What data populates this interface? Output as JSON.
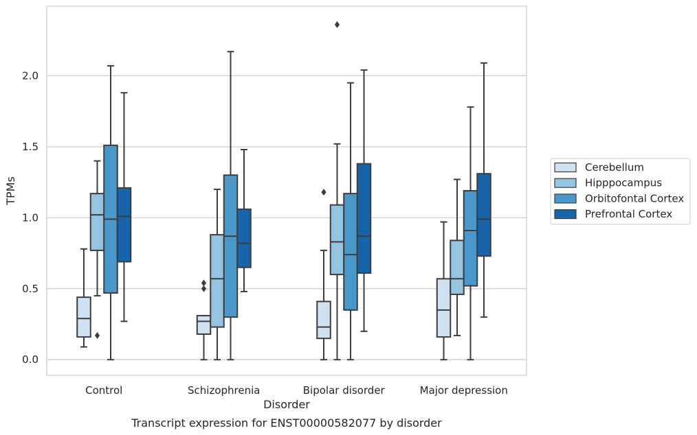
{
  "chart_data": {
    "type": "box",
    "xlabel": "Disorder",
    "ylabel": "TPMs",
    "caption": "Transcript expression for ENST00000582077 by disorder",
    "categories": [
      "Control",
      "Schizophrenia",
      "Bipolar disorder",
      "Major depression"
    ],
    "ylim": [
      -0.11,
      2.49
    ],
    "yticks": [
      "0.0",
      "0.5",
      "1.0",
      "1.5",
      "2.0"
    ],
    "ytick_values": [
      0.0,
      0.5,
      1.0,
      1.5,
      2.0
    ],
    "grid": true,
    "legend_position": "right",
    "series": [
      {
        "name": "Cerebellum",
        "color": "#d0e1f2",
        "boxes": [
          {
            "whislo": 0.09,
            "q1": 0.16,
            "med": 0.29,
            "q3": 0.44,
            "whishi": 0.78,
            "fliers": []
          },
          {
            "whislo": 0.0,
            "q1": 0.18,
            "med": 0.27,
            "q3": 0.31,
            "whishi": 0.31,
            "fliers": [
              0.54,
              0.5
            ]
          },
          {
            "whislo": 0.0,
            "q1": 0.15,
            "med": 0.23,
            "q3": 0.41,
            "whishi": 0.77,
            "fliers": [
              1.18
            ]
          },
          {
            "whislo": 0.0,
            "q1": 0.16,
            "med": 0.35,
            "q3": 0.57,
            "whishi": 0.97,
            "fliers": []
          }
        ]
      },
      {
        "name": "Hipppocampus",
        "color": "#94c4df",
        "boxes": [
          {
            "whislo": 0.45,
            "q1": 0.77,
            "med": 1.02,
            "q3": 1.17,
            "whishi": 1.4,
            "fliers": [
              0.17
            ]
          },
          {
            "whislo": 0.0,
            "q1": 0.23,
            "med": 0.57,
            "q3": 0.88,
            "whishi": 1.2,
            "fliers": []
          },
          {
            "whislo": 0.0,
            "q1": 0.6,
            "med": 0.83,
            "q3": 1.09,
            "whishi": 1.52,
            "fliers": [
              2.36
            ]
          },
          {
            "whislo": 0.17,
            "q1": 0.46,
            "med": 0.57,
            "q3": 0.84,
            "whishi": 1.27,
            "fliers": []
          }
        ]
      },
      {
        "name": "Orbitofontal Cortex",
        "color": "#4a98c9",
        "boxes": [
          {
            "whislo": 0.0,
            "q1": 0.47,
            "med": 0.99,
            "q3": 1.51,
            "whishi": 2.07,
            "fliers": []
          },
          {
            "whislo": 0.0,
            "q1": 0.3,
            "med": 0.87,
            "q3": 1.3,
            "whishi": 2.17,
            "fliers": []
          },
          {
            "whislo": 0.0,
            "q1": 0.35,
            "med": 0.74,
            "q3": 1.17,
            "whishi": 1.95,
            "fliers": []
          },
          {
            "whislo": 0.0,
            "q1": 0.52,
            "med": 0.91,
            "q3": 1.19,
            "whishi": 1.78,
            "fliers": []
          }
        ]
      },
      {
        "name": "Prefrontal Cortex",
        "color": "#1764ab",
        "boxes": [
          {
            "whislo": 0.27,
            "q1": 0.69,
            "med": 1.01,
            "q3": 1.21,
            "whishi": 1.88,
            "fliers": []
          },
          {
            "whislo": 0.48,
            "q1": 0.65,
            "med": 0.82,
            "q3": 1.06,
            "whishi": 1.48,
            "fliers": []
          },
          {
            "whislo": 0.2,
            "q1": 0.61,
            "med": 0.87,
            "q3": 1.38,
            "whishi": 2.04,
            "fliers": []
          },
          {
            "whislo": 0.3,
            "q1": 0.73,
            "med": 0.99,
            "q3": 1.31,
            "whishi": 2.09,
            "fliers": []
          }
        ]
      }
    ]
  }
}
